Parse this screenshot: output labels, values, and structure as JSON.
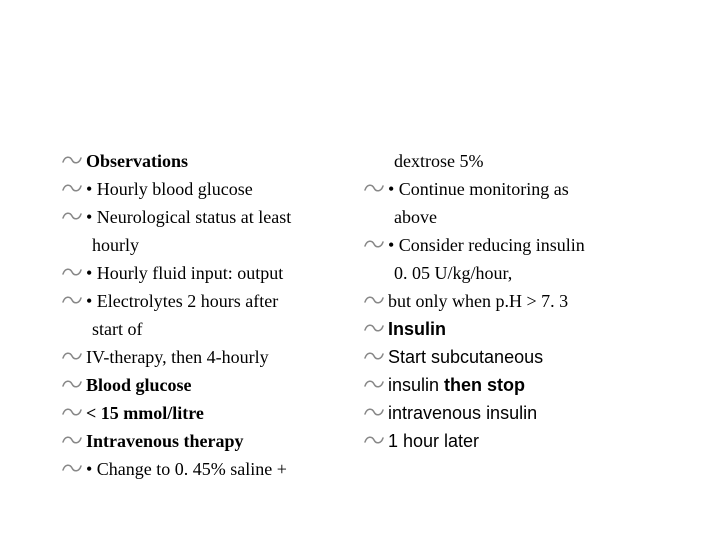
{
  "font": {
    "serif": "Georgia, Times New Roman, serif",
    "sans": "Arial, Helvetica, sans-serif",
    "bullet_color": "#888888",
    "text_color": "#000000",
    "size_pt": 18
  },
  "left": [
    {
      "bullet": true,
      "bold": true,
      "family": "serif",
      "text": "Observations"
    },
    {
      "bullet": true,
      "bold": false,
      "family": "serif",
      "text": "• Hourly blood glucose"
    },
    {
      "bullet": true,
      "bold": false,
      "family": "serif",
      "text": "• Neurological status at least"
    },
    {
      "bullet": false,
      "bold": false,
      "family": "serif",
      "text": "hourly",
      "indent": true
    },
    {
      "bullet": true,
      "bold": false,
      "family": "serif",
      "text": "• Hourly fluid input: output"
    },
    {
      "bullet": true,
      "bold": false,
      "family": "serif",
      "text": "• Electrolytes 2 hours after"
    },
    {
      "bullet": false,
      "bold": false,
      "family": "serif",
      "text": "start of",
      "indent": true
    },
    {
      "bullet": true,
      "bold": false,
      "family": "serif",
      "text": "IV-therapy, then 4-hourly"
    },
    {
      "bullet": true,
      "bold": true,
      "family": "serif",
      "text": "Blood glucose"
    },
    {
      "bullet": true,
      "bold": true,
      "family": "serif",
      "text": "< 15 mmol/litre"
    },
    {
      "bullet": true,
      "bold": true,
      "family": "serif",
      "text": "Intravenous therapy"
    },
    {
      "bullet": true,
      "bold": false,
      "family": "serif",
      "text": "• Change to 0. 45% saline +"
    }
  ],
  "right": [
    {
      "bullet": false,
      "bold": false,
      "family": "serif",
      "text": "dextrose 5%",
      "indent": true
    },
    {
      "bullet": true,
      "bold": false,
      "family": "serif",
      "text": "• Continue monitoring as"
    },
    {
      "bullet": false,
      "bold": false,
      "family": "serif",
      "text": "above",
      "indent": true
    },
    {
      "bullet": true,
      "bold": false,
      "family": "serif",
      "text": "• Consider reducing insulin"
    },
    {
      "bullet": false,
      "bold": false,
      "family": "serif",
      "text": "0. 05 U/kg/hour,",
      "indent": true
    },
    {
      "bullet": true,
      "bold": false,
      "family": "serif",
      "text": "but only when p.H > 7. 3"
    },
    {
      "bullet": true,
      "bold": true,
      "family": "sans",
      "text": "Insulin"
    },
    {
      "bullet": true,
      "bold": false,
      "family": "sans",
      "text": "Start subcutaneous"
    },
    {
      "bullet": true,
      "bold": false,
      "family": "sans",
      "parts": [
        {
          "text": "insulin ",
          "bold": false
        },
        {
          "text": "then stop",
          "bold": true
        }
      ]
    },
    {
      "bullet": true,
      "bold": false,
      "family": "sans",
      "parts": [
        {
          "text": "intravenous ",
          "bold": false
        },
        {
          "text": "insulin",
          "bold": false
        }
      ]
    },
    {
      "bullet": true,
      "bold": false,
      "family": "sans",
      "text": "1 hour later"
    }
  ]
}
